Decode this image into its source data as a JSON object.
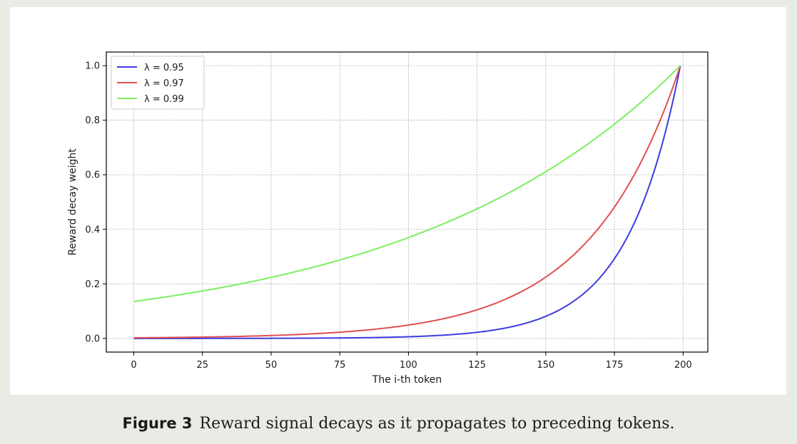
{
  "caption": {
    "label": "Figure 3",
    "text": "Reward signal decays as it propagates to preceding tokens."
  },
  "chart_data": {
    "type": "line",
    "title": "",
    "xlabel": "The i-th token",
    "ylabel": "Reward decay weight",
    "xlim": [
      -10,
      209
    ],
    "ylim": [
      -0.05,
      1.05
    ],
    "xticks": [
      0,
      25,
      50,
      75,
      100,
      125,
      150,
      175,
      200
    ],
    "yticks": [
      0.0,
      0.2,
      0.4,
      0.6,
      0.8,
      1.0
    ],
    "grid": true,
    "legend": "top-left",
    "n_tokens": 200,
    "series": [
      {
        "name": "λ = 0.95",
        "lambda": 0.95,
        "color": "#3c3ce0"
      },
      {
        "name": "λ = 0.97",
        "lambda": 0.97,
        "color": "#e05050"
      },
      {
        "name": "λ = 0.99",
        "lambda": 0.99,
        "color": "#7cf060"
      }
    ]
  }
}
